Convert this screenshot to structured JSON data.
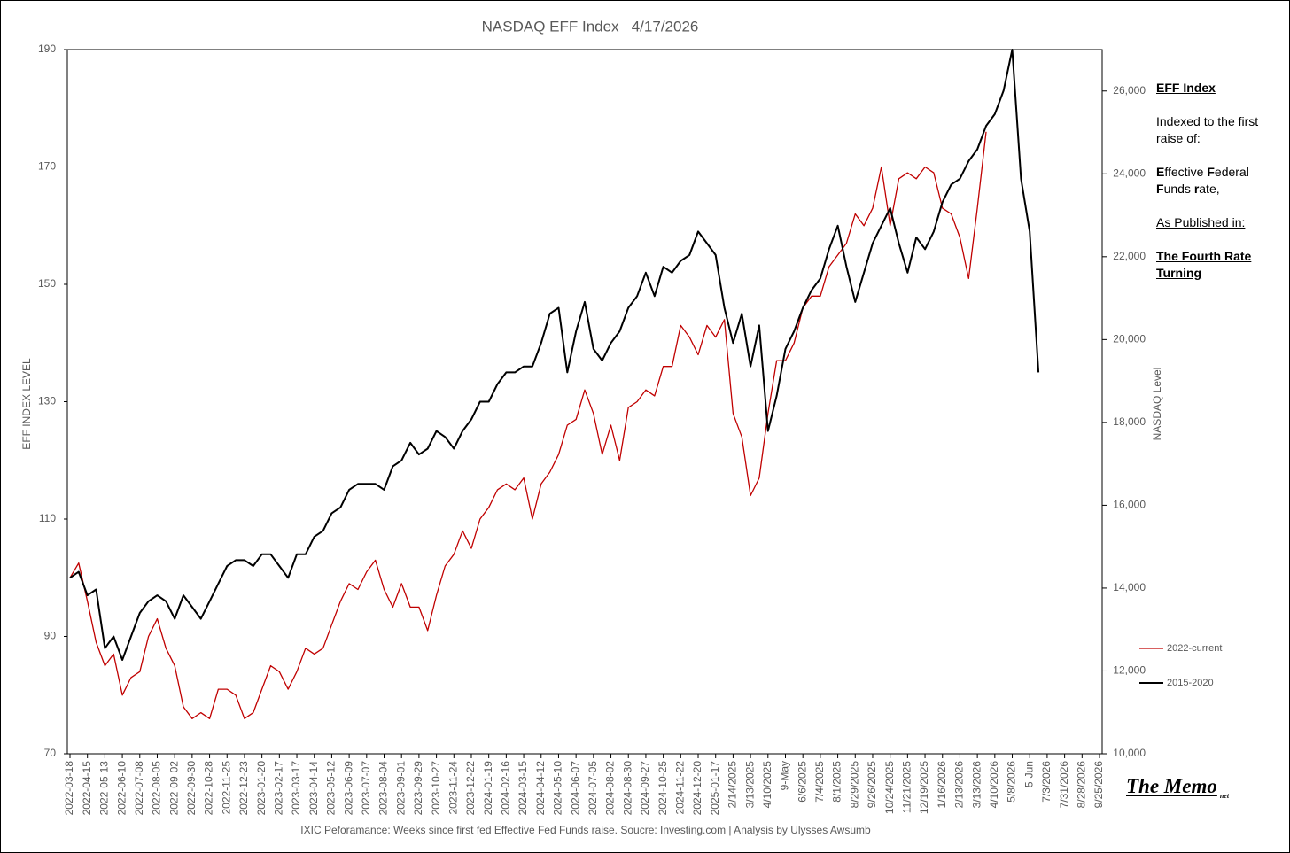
{
  "chart_data": {
    "type": "line",
    "title": "NASDAQ EFF Index   4/17/2026",
    "ylabel": "EFF INDEX LEVEL",
    "y2label": "NASDAQ Level",
    "footer": "IXIC Peforamance: Weeks since first fed Effective Fed Funds raise.   Soucre: Investing.com  | Analysis by Ulysses Awsumb",
    "annotations": [
      "EFF Index",
      "Indexed to the first raise of:",
      "Effective Federal Funds rate,",
      "As Published in:",
      "The Fourth Rate Turning"
    ],
    "brand": {
      "name": "The Memo",
      "suffix": "net"
    },
    "legend": "lower right",
    "ylim": [
      70,
      190
    ],
    "yticks": [
      70,
      90,
      110,
      130,
      150,
      170,
      190
    ],
    "y2lim": [
      10000,
      27000
    ],
    "y2ticks": [
      {
        "value": 10000,
        "label": "10,000"
      },
      {
        "value": 12000,
        "label": "12,000"
      },
      {
        "value": 14000,
        "label": "14,000"
      },
      {
        "value": 16000,
        "label": "16,000"
      },
      {
        "value": 18000,
        "label": "18,000"
      },
      {
        "value": 20000,
        "label": "20,000"
      },
      {
        "value": 22000,
        "label": "22,000"
      },
      {
        "value": 24000,
        "label": "24,000"
      },
      {
        "value": 26000,
        "label": "26,000"
      }
    ],
    "categories": [
      "2022-03-18",
      null,
      "2022-04-15",
      null,
      "2022-05-13",
      null,
      "2022-06-10",
      null,
      "2022-07-08",
      null,
      "2022-08-05",
      null,
      "2022-09-02",
      null,
      "2022-09-30",
      null,
      "2022-10-28",
      null,
      "2022-11-25",
      null,
      "2022-12-23",
      null,
      "2023-01-20",
      null,
      "2023-02-17",
      null,
      "2023-03-17",
      null,
      "2023-04-14",
      null,
      "2023-05-12",
      null,
      "2023-06-09",
      null,
      "2023-07-07",
      null,
      "2023-08-04",
      null,
      "2023-09-01",
      null,
      "2023-09-29",
      null,
      "2023-10-27",
      null,
      "2023-11-24",
      null,
      "2023-12-22",
      null,
      "2024-01-19",
      null,
      "2024-02-16",
      null,
      "2024-03-15",
      null,
      "2024-04-12",
      null,
      "2024-05-10",
      null,
      "2024-06-07",
      null,
      "2024-07-05",
      null,
      "2024-08-02",
      null,
      "2024-08-30",
      null,
      "2024-09-27",
      null,
      "2024-10-25",
      null,
      "2024-11-22",
      null,
      "2024-12-20",
      null,
      "2025-01-17",
      null,
      "2/14/2025",
      null,
      "3/13/2025",
      null,
      "4/10/2025",
      null,
      "9-May",
      null,
      "6/6/2025",
      null,
      "7/4/2025",
      null,
      "8/1/2025",
      null,
      "8/29/2025",
      null,
      "9/26/2025",
      null,
      "10/24/2025",
      null,
      "11/21/2025",
      null,
      "12/19/2025",
      null,
      "1/16/2026",
      null,
      "2/13/2026",
      null,
      "3/13/2026",
      null,
      "4/10/2026",
      null,
      "5/8/2026",
      null,
      "5-Jun",
      null,
      "7/3/2026",
      null,
      "7/31/2026",
      null,
      "8/28/2026",
      null,
      "9/25/2026"
    ],
    "series": [
      {
        "name": "2022-current",
        "color": "#c00000",
        "width": 1.3,
        "values": [
          100,
          102.5,
          96,
          89,
          85,
          87,
          80,
          83,
          84,
          90,
          93,
          88,
          85,
          78,
          76,
          77,
          76,
          81,
          81,
          80,
          76,
          77,
          81,
          85,
          84,
          81,
          84,
          88,
          87,
          88,
          92,
          96,
          99,
          98,
          101,
          103,
          98,
          95,
          99,
          95,
          95,
          91,
          97,
          102,
          104,
          108,
          105,
          110,
          112,
          115,
          116,
          115,
          117,
          110,
          116,
          118,
          121,
          126,
          127,
          132,
          128,
          121,
          126,
          120,
          129,
          130,
          132,
          131,
          136,
          136,
          143,
          141,
          138,
          143,
          141,
          144,
          128,
          124,
          114,
          117,
          128,
          137,
          137,
          140,
          146,
          148,
          148,
          153,
          155,
          157,
          162,
          160,
          163,
          170,
          160,
          168,
          169,
          168,
          170,
          169,
          163,
          162,
          158,
          151,
          163,
          176,
          null,
          null,
          null,
          null,
          null,
          null,
          null,
          null,
          null,
          null,
          null,
          null,
          null
        ]
      },
      {
        "name": "2015-2020",
        "color": "#000000",
        "width": 2,
        "values": [
          100,
          101,
          97,
          98,
          88,
          90,
          86,
          90,
          94,
          96,
          97,
          96,
          93,
          97,
          95,
          93,
          96,
          99,
          102,
          103,
          103,
          102,
          104,
          104,
          102,
          100,
          104,
          104,
          107,
          108,
          111,
          112,
          115,
          116,
          116,
          116,
          115,
          119,
          120,
          123,
          121,
          122,
          125,
          124,
          122,
          125,
          127,
          130,
          130,
          133,
          135,
          135,
          136,
          136,
          140,
          145,
          146,
          135,
          142,
          147,
          139,
          137,
          140,
          142,
          146,
          148,
          152,
          148,
          153,
          152,
          154,
          155,
          159,
          157,
          155,
          146,
          140,
          145,
          136,
          143,
          125,
          131,
          139,
          142,
          146,
          149,
          151,
          156,
          160,
          153,
          147,
          152,
          157,
          160,
          163,
          157,
          152,
          158,
          156,
          159,
          164,
          167,
          168,
          171,
          173,
          177,
          179,
          183,
          190,
          168,
          159,
          135,
          null,
          null,
          null,
          null,
          null,
          null,
          null
        ]
      }
    ]
  }
}
